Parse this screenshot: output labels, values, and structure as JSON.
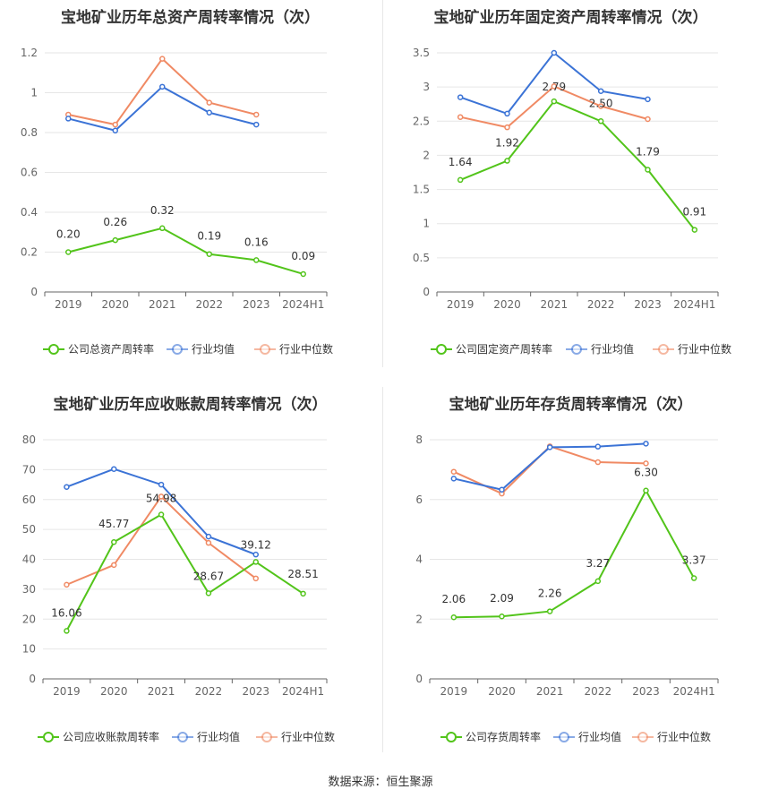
{
  "footer": "数据来源：恒生聚源",
  "colors": {
    "company": "#52c41a",
    "avg": "#3b73d6",
    "median": "#f08a64"
  },
  "chart_data": [
    {
      "type": "line",
      "title": "宝地矿业历年总资产周转率情况（次）",
      "categories": [
        "2019",
        "2020",
        "2021",
        "2022",
        "2023",
        "2024H1"
      ],
      "ylim": [
        0,
        1.2
      ],
      "yticks": [
        0,
        0.2,
        0.4,
        0.6,
        0.8,
        1,
        1.2
      ],
      "ytick_labels": [
        "0",
        "0.2",
        "0.4",
        "0.6",
        "0.8",
        "1",
        "1.2"
      ],
      "series": [
        {
          "name": "公司总资产周转率",
          "key": "company",
          "values": [
            0.2,
            0.26,
            0.32,
            0.19,
            0.16,
            0.09
          ],
          "labels": [
            "0.20",
            "0.26",
            "0.32",
            "0.19",
            "0.16",
            "0.09"
          ]
        },
        {
          "name": "行业均值",
          "key": "avg",
          "values": [
            0.87,
            0.81,
            1.03,
            0.9,
            0.84,
            null
          ]
        },
        {
          "name": "行业中位数",
          "key": "median",
          "values": [
            0.89,
            0.84,
            1.17,
            0.95,
            0.89,
            null
          ]
        }
      ]
    },
    {
      "type": "line",
      "title": "宝地矿业历年固定资产周转率情况（次）",
      "categories": [
        "2019",
        "2020",
        "2021",
        "2022",
        "2023",
        "2024H1"
      ],
      "ylim": [
        0,
        3.5
      ],
      "yticks": [
        0,
        0.5,
        1,
        1.5,
        2,
        2.5,
        3,
        3.5
      ],
      "ytick_labels": [
        "0",
        "0.5",
        "1",
        "1.5",
        "2",
        "2.5",
        "3",
        "3.5"
      ],
      "series": [
        {
          "name": "公司固定资产周转率",
          "key": "company",
          "values": [
            1.64,
            1.92,
            2.79,
            2.5,
            1.79,
            0.91
          ],
          "labels": [
            "1.64",
            "1.92",
            "2.79",
            "2.50",
            "1.79",
            "0.91"
          ]
        },
        {
          "name": "行业均值",
          "key": "avg",
          "values": [
            2.85,
            2.61,
            3.5,
            2.94,
            2.82,
            null
          ]
        },
        {
          "name": "行业中位数",
          "key": "median",
          "values": [
            2.56,
            2.41,
            3.01,
            2.72,
            2.53,
            null
          ]
        }
      ]
    },
    {
      "type": "line",
      "title": "宝地矿业历年应收账款周转率情况（次）",
      "categories": [
        "2019",
        "2020",
        "2021",
        "2022",
        "2023",
        "2024H1"
      ],
      "ylim": [
        0,
        80
      ],
      "yticks": [
        0,
        10,
        20,
        30,
        40,
        50,
        60,
        70,
        80
      ],
      "ytick_labels": [
        "0",
        "10",
        "20",
        "30",
        "40",
        "50",
        "60",
        "70",
        "80"
      ],
      "series": [
        {
          "name": "公司应收账款周转率",
          "key": "company",
          "values": [
            16.06,
            45.77,
            54.98,
            28.67,
            39.12,
            28.51
          ],
          "labels": [
            "16.06",
            "45.77",
            "54.98",
            "28.67",
            "39.12",
            "28.51"
          ]
        },
        {
          "name": "行业均值",
          "key": "avg",
          "values": [
            64.2,
            70.2,
            65.0,
            47.6,
            41.6,
            null
          ]
        },
        {
          "name": "行业中位数",
          "key": "median",
          "values": [
            31.5,
            38.1,
            61.0,
            45.5,
            33.6,
            null
          ]
        }
      ]
    },
    {
      "type": "line",
      "title": "宝地矿业历年存货周转率情况（次）",
      "categories": [
        "2019",
        "2020",
        "2021",
        "2022",
        "2023",
        "2024H1"
      ],
      "ylim": [
        0,
        8
      ],
      "yticks": [
        0,
        2,
        4,
        6,
        8
      ],
      "ytick_labels": [
        "0",
        "2",
        "4",
        "6",
        "8"
      ],
      "series": [
        {
          "name": "公司存货周转率",
          "key": "company",
          "values": [
            2.06,
            2.09,
            2.26,
            3.27,
            6.3,
            3.37
          ],
          "labels": [
            "2.06",
            "2.09",
            "2.26",
            "3.27",
            "6.30",
            "3.37"
          ]
        },
        {
          "name": "行业均值",
          "key": "avg",
          "values": [
            6.7,
            6.33,
            7.75,
            7.77,
            7.87,
            null
          ]
        },
        {
          "name": "行业中位数",
          "key": "median",
          "values": [
            6.93,
            6.2,
            7.78,
            7.25,
            7.21,
            null
          ]
        }
      ]
    }
  ]
}
